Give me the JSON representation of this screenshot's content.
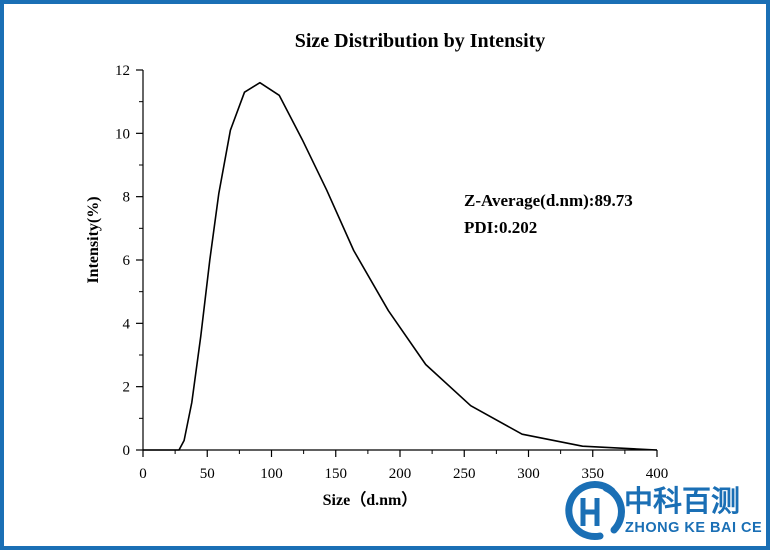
{
  "chart_data": {
    "type": "line",
    "title": "Size Distribution by Intensity",
    "xlabel": "Size（d.nm）",
    "ylabel": "Intensity(%)",
    "xlim": [
      0,
      400
    ],
    "ylim": [
      0,
      12
    ],
    "xticks": [
      0,
      50,
      100,
      150,
      200,
      250,
      300,
      350,
      400
    ],
    "yticks": [
      0,
      2,
      4,
      6,
      8,
      10,
      12
    ],
    "grid": false,
    "series": [
      {
        "x": [
          0,
          28,
          32,
          38,
          45,
          52,
          59,
          68,
          79,
          91,
          106,
          124,
          143,
          164,
          191,
          220,
          255,
          295,
          342,
          400
        ],
        "y": [
          0,
          0,
          0.3,
          1.5,
          3.6,
          6.0,
          8.1,
          10.1,
          11.3,
          11.6,
          11.2,
          9.8,
          8.2,
          6.3,
          4.4,
          2.7,
          1.4,
          0.5,
          0.12,
          0.0
        ]
      }
    ],
    "annotations": [
      "Z-Average(d.nm):89.73",
      "PDI:0.202"
    ]
  },
  "logo": {
    "name_cn": "中科百测",
    "name_en": "ZHONG KE BAI CE",
    "color": "#1a6fb5"
  },
  "frame_color": "#1a6fb5"
}
